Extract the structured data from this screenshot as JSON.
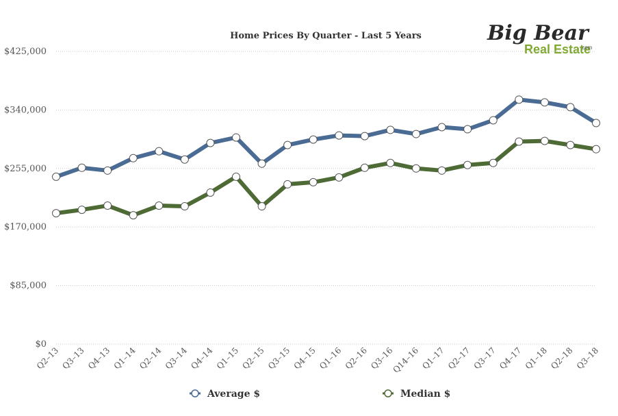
{
  "brand": {
    "logo_main": "Big Bear",
    "logo_sub": "Real Estate",
    "logo_com": ".com"
  },
  "chart_data": {
    "type": "line",
    "title": "Home Prices By Quarter - Last 5 Years",
    "categories": [
      "Q2–13",
      "Q3–13",
      "Q4–13",
      "Q1–14",
      "Q2–14",
      "Q3–14",
      "Q4–14",
      "Q1–15",
      "Q2–15",
      "Q3–15",
      "Q4–15",
      "Q1–16",
      "Q2–16",
      "Q3–16",
      "Q14–16",
      "Q1–17",
      "Q2–17",
      "Q3–17",
      "Q4–17",
      "Q1–18",
      "Q2–18",
      "Q3–18"
    ],
    "y_ticks": [
      0,
      85000,
      170000,
      255000,
      340000,
      425000
    ],
    "y_tick_labels": [
      "$0",
      "$85,000",
      "$170,000",
      "$255,000",
      "$340,000",
      "$425,000"
    ],
    "ylim": [
      0,
      425000
    ],
    "grid": true,
    "legend_position": "bottom",
    "series": [
      {
        "name": "Average $",
        "color": "#4a6b94",
        "values": [
          243000,
          256000,
          252000,
          270000,
          280000,
          268000,
          292000,
          300000,
          262000,
          289000,
          297000,
          303000,
          302000,
          311000,
          305000,
          315000,
          312000,
          325000,
          355000,
          351000,
          344000,
          321000
        ]
      },
      {
        "name": "Median $",
        "color": "#4e6b35",
        "values": [
          190000,
          195000,
          201000,
          187000,
          201000,
          200000,
          220000,
          243000,
          200000,
          232000,
          235000,
          242000,
          256000,
          263000,
          255000,
          252000,
          260000,
          263000,
          294000,
          295000,
          289000,
          283000
        ]
      }
    ]
  }
}
